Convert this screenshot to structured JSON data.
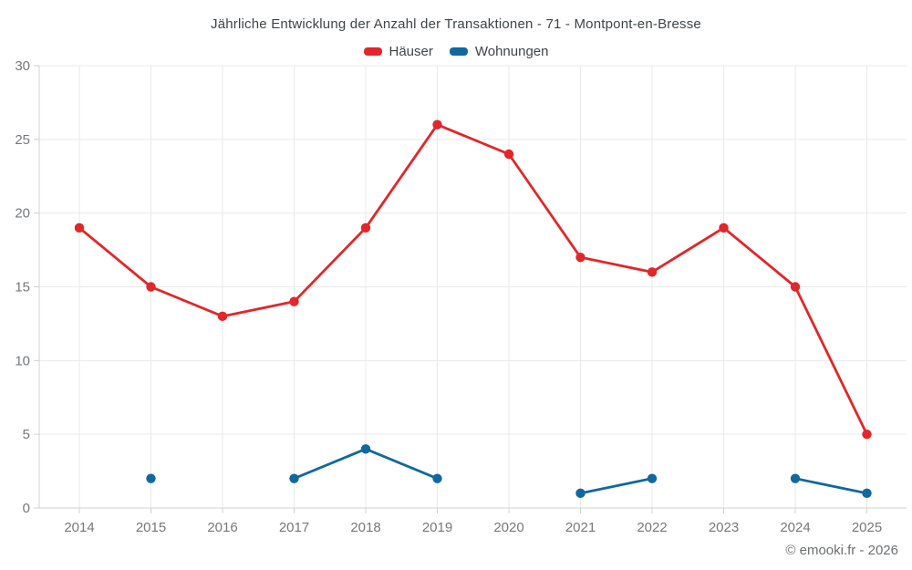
{
  "header": {
    "title": "Jährliche Entwicklung der Anzahl der Transaktionen - 71 - Montpont-en-Bresse"
  },
  "legend": {
    "items": [
      {
        "label": "Häuser",
        "color": "#e2262a"
      },
      {
        "label": "Wohnungen",
        "color": "#11689e"
      }
    ]
  },
  "footer": {
    "copyright": "© emooki.fr - 2026"
  },
  "colors": {
    "haeuser": "#e2262a",
    "wohnungen": "#11689e",
    "grid": "#e9e9e9",
    "axis": "#d0d0d0",
    "tick_text": "#75787b"
  },
  "chart_data": {
    "type": "line",
    "title": "Jährliche Entwicklung der Anzahl der Transaktionen - 71 - Montpont-en-Bresse",
    "categories": [
      "2014",
      "2015",
      "2016",
      "2017",
      "2018",
      "2019",
      "2020",
      "2021",
      "2022",
      "2023",
      "2024",
      "2025"
    ],
    "series": [
      {
        "name": "Häuser",
        "color": "#e2262a",
        "values": [
          19,
          15,
          13,
          14,
          19,
          26,
          24,
          17,
          16,
          19,
          15,
          5
        ]
      },
      {
        "name": "Wohnungen",
        "color": "#11689e",
        "values": [
          null,
          2,
          null,
          2,
          4,
          2,
          null,
          1,
          2,
          null,
          2,
          1
        ]
      }
    ],
    "xlabel": "",
    "ylabel": "",
    "ylim": [
      0,
      30
    ],
    "yticks": [
      0,
      5,
      10,
      15,
      20,
      25,
      30
    ],
    "grid": true,
    "legend_position": "top"
  }
}
